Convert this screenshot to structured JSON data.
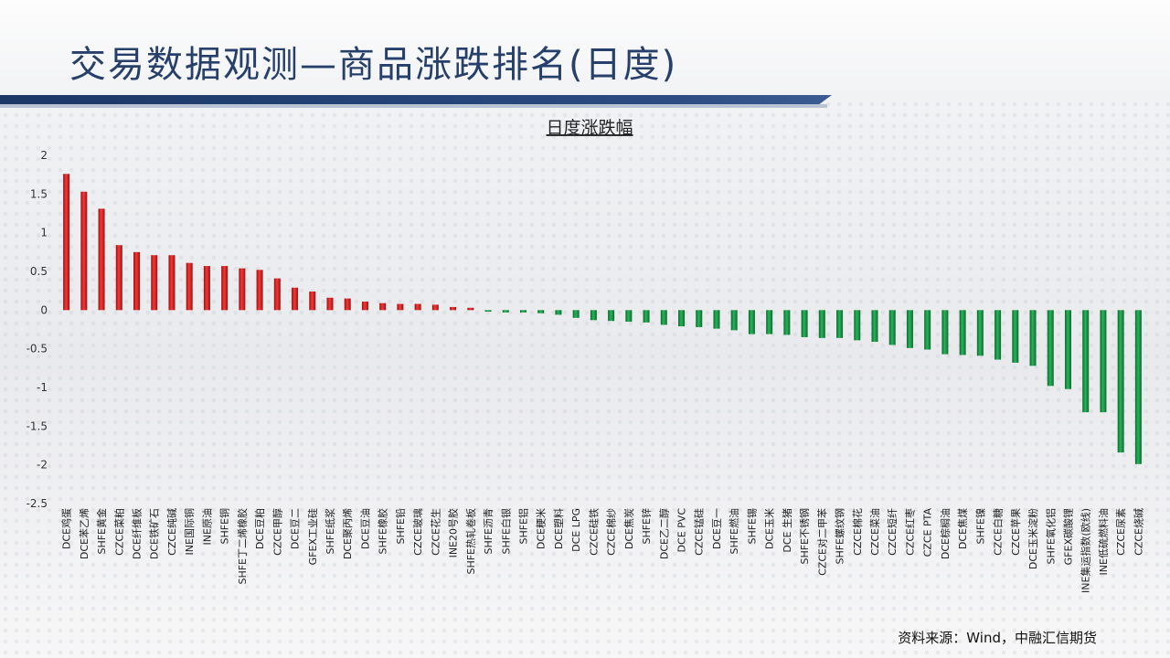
{
  "page": {
    "title": "交易数据观测—商品涨跌排名(日度)",
    "source": "资料来源：Wind，中融汇信期货"
  },
  "colors": {
    "up": "#d91b1b",
    "down": "#169a44",
    "title": "#26406b",
    "bar": "#1f3a6a"
  },
  "chart_data": {
    "type": "bar",
    "title": "日度涨跌幅",
    "ylim": [
      -2.5,
      2
    ],
    "yticks": [
      2,
      1.5,
      1,
      0.5,
      0,
      -0.5,
      -1,
      -1.5,
      -2,
      -2.5
    ],
    "grid": false,
    "categories": [
      "DCE鸡蛋",
      "DCE苯乙烯",
      "SHFE黄金",
      "CZCE菜粕",
      "DCE纤维板",
      "DCE铁矿石",
      "CZCE纯碱",
      "INE国际铜",
      "INE原油",
      "SHFE铜",
      "SHFE丁二烯橡胶",
      "DCE豆粕",
      "CZCE甲醇",
      "DCE豆二",
      "GFEX工业硅",
      "SHFE纸浆",
      "DCE聚丙烯",
      "DCE豆油",
      "SHFE橡胶",
      "SHFE铅",
      "CZCE玻璃",
      "CZCE花生",
      "INE20号胶",
      "SHFE热轧卷板",
      "SHFE沥青",
      "SHFE白银",
      "SHFE铝",
      "DCE粳米",
      "DCE塑料",
      "DCE LPG",
      "CZCE硅铁",
      "CZCE棉纱",
      "DCE焦炭",
      "SHFE锌",
      "DCE乙二醇",
      "DCE PVC",
      "CZCE锰硅",
      "DCE豆一",
      "SHFE燃油",
      "SHFE锡",
      "DCE玉米",
      "DCE 生猪",
      "SHFE不锈钢",
      "CZCE对二甲苯",
      "SHFE螺纹钢",
      "CZCE棉花",
      "CZCE菜油",
      "CZCE短纤",
      "CZCE红枣",
      "CZCE PTA",
      "DCE棕榈油",
      "DCE焦煤",
      "SHFE镍",
      "CZCE白糖",
      "CZCE苹果",
      "DCE玉米淀粉",
      "SHFE氧化铝",
      "GFEX碳酸锂",
      "INE集运指数(欧线)",
      "INE低硫燃料油",
      "CZCE尿素",
      "CZCE烧碱"
    ],
    "values": [
      1.76,
      1.53,
      1.31,
      0.84,
      0.75,
      0.71,
      0.71,
      0.61,
      0.57,
      0.57,
      0.54,
      0.52,
      0.41,
      0.29,
      0.24,
      0.16,
      0.15,
      0.11,
      0.09,
      0.08,
      0.08,
      0.07,
      0.04,
      0.03,
      -0.02,
      -0.03,
      -0.03,
      -0.04,
      -0.06,
      -0.1,
      -0.13,
      -0.14,
      -0.15,
      -0.16,
      -0.19,
      -0.21,
      -0.22,
      -0.24,
      -0.26,
      -0.31,
      -0.31,
      -0.32,
      -0.35,
      -0.36,
      -0.36,
      -0.39,
      -0.41,
      -0.45,
      -0.49,
      -0.51,
      -0.57,
      -0.58,
      -0.59,
      -0.64,
      -0.68,
      -0.72,
      -0.98,
      -1.02,
      -1.32,
      -1.32,
      -1.84,
      -1.99
    ]
  }
}
